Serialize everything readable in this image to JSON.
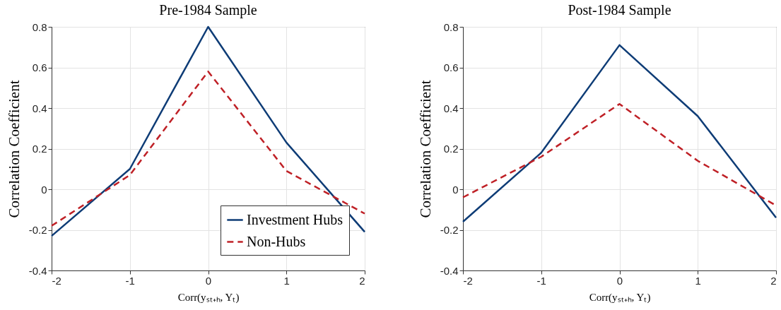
{
  "chart_data": [
    {
      "type": "line",
      "title": "Pre-1984 Sample",
      "xlabel": "Corr(yₛₜ₊ₕ, Yₜ)",
      "ylabel": "Correlation Coefficient",
      "x": [
        -2,
        -1,
        0,
        1,
        2
      ],
      "xlim": [
        -2,
        2
      ],
      "xticks": [
        -2,
        -1,
        0,
        1,
        2
      ],
      "ylim": [
        -0.4,
        0.8
      ],
      "yticks": [
        -0.4,
        -0.2,
        0,
        0.2,
        0.4,
        0.6,
        0.8
      ],
      "grid": true,
      "legend": "bottom right",
      "series": [
        {
          "name": "Investment Hubs",
          "color": "#0e3c76",
          "line_style": "solid",
          "values": [
            -0.23,
            0.1,
            0.8,
            0.23,
            -0.21
          ]
        },
        {
          "name": "Non-Hubs",
          "color": "#bf2026",
          "line_style": "dashed",
          "values": [
            -0.18,
            0.07,
            0.58,
            0.09,
            -0.12
          ]
        }
      ]
    },
    {
      "type": "line",
      "title": "Post-1984 Sample",
      "xlabel": "Corr(yₛₜ₊ₕ, Yₜ)",
      "ylabel": "Correlation Coefficient",
      "x": [
        -2,
        -1,
        0,
        1,
        2
      ],
      "xlim": [
        -2,
        2
      ],
      "xticks": [
        -2,
        -1,
        0,
        1,
        2
      ],
      "ylim": [
        -0.4,
        0.8
      ],
      "yticks": [
        -0.4,
        -0.2,
        0,
        0.2,
        0.4,
        0.6,
        0.8
      ],
      "grid": true,
      "series": [
        {
          "color": "#0e3c76",
          "line_style": "solid",
          "values": [
            -0.16,
            0.18,
            0.71,
            0.36,
            -0.14
          ]
        },
        {
          "color": "#bf2026",
          "line_style": "dashed",
          "values": [
            -0.04,
            0.16,
            0.42,
            0.14,
            -0.08
          ]
        }
      ]
    }
  ]
}
